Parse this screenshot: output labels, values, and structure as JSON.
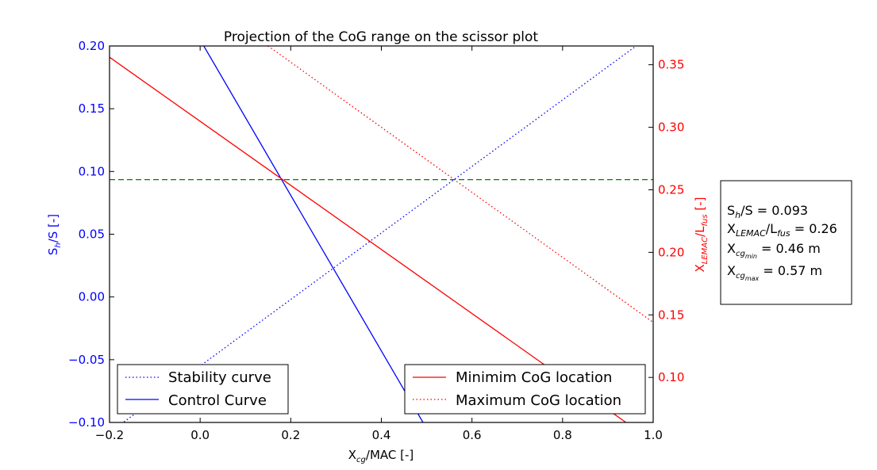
{
  "chart_data": {
    "type": "line",
    "title": "Projection of the CoG range on the scissor plot",
    "xlabel": "X_cg/MAC [-]",
    "ylabel_left": "S_h/S [-]",
    "ylabel_right": "X_LEMAC/L_fus [-]",
    "xlim": [
      -0.2,
      1.0
    ],
    "ylim_left": [
      -0.1,
      0.2
    ],
    "ylim_right": [
      0.064,
      0.365
    ],
    "x_ticks": [
      "−0.2",
      "0.0",
      "0.2",
      "0.4",
      "0.6",
      "0.8",
      "1.0"
    ],
    "y_left_ticks": [
      "−0.10",
      "−0.05",
      "0.00",
      "0.05",
      "0.10",
      "0.15",
      "0.20"
    ],
    "y_right_ticks": [
      "0.10",
      "0.15",
      "0.20",
      "0.25",
      "0.30",
      "0.35"
    ],
    "grid": false,
    "series": [
      {
        "name": "Stability curve",
        "axis": "left",
        "color": "#0000ff",
        "style": "dotted",
        "x": [
          -0.2,
          1.0
        ],
        "y": [
          -0.108,
          0.21
        ]
      },
      {
        "name": "Control Curve",
        "axis": "left",
        "color": "#0000ff",
        "style": "solid",
        "x": [
          0.0,
          0.5
        ],
        "y": [
          0.205,
          -0.105
        ]
      },
      {
        "name": "Minimim CoG location",
        "axis": "right",
        "color": "#ff0000",
        "style": "solid",
        "x": [
          -0.2,
          0.94
        ],
        "y": [
          0.356,
          0.064
        ]
      },
      {
        "name": "Maximum CoG location",
        "axis": "right",
        "color": "#ff0000",
        "style": "dotted",
        "x": [
          0.15,
          1.0
        ],
        "y": [
          0.365,
          0.144
        ]
      },
      {
        "name": "",
        "axis": "left",
        "color": "#008000",
        "style": "dashed",
        "x": [
          -0.2,
          1.0
        ],
        "y": [
          0.0935,
          0.0935
        ]
      }
    ],
    "legend_left": [
      "Stability curve",
      "Control Curve"
    ],
    "legend_right": [
      "Minimim CoG location",
      "Maximum CoG location"
    ],
    "legend_left_placement": "lower-left",
    "legend_right_placement": "lower-right"
  },
  "info_box": {
    "line1": "S_h/S = 0.093",
    "line2": "X_LEMAC/L_fus = 0.26",
    "line3": "X_cg_min = 0.46 m",
    "line4": "X_cg_max = 0.57 m"
  }
}
